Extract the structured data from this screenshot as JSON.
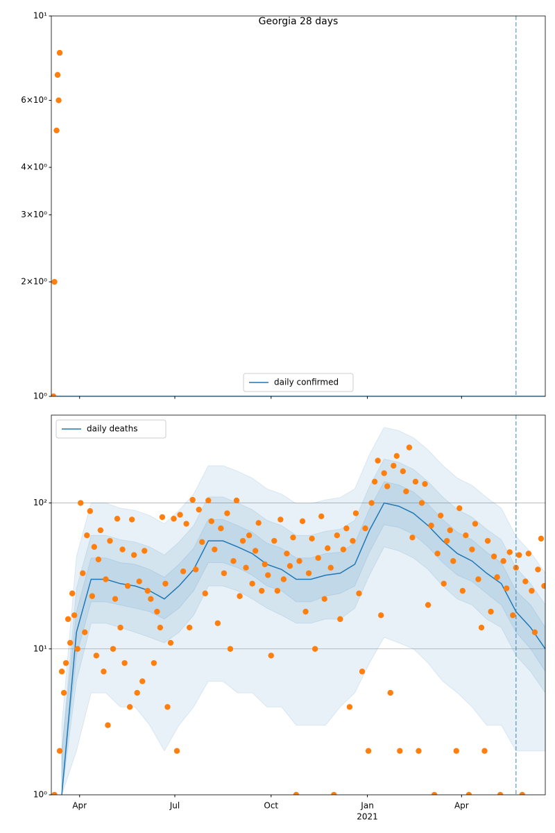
{
  "chart_data": [
    {
      "type": "line",
      "title": "Georgia 28 days",
      "log_y": true,
      "grid": false,
      "legend": "lower center",
      "xlim": [
        "2020-03-05",
        "2021-06-20"
      ],
      "ylim": [
        1,
        10
      ],
      "xticks": [
        "2020-04-01",
        "2020-07-01",
        "2020-10-01",
        "2021-01-01",
        "2021-04-01"
      ],
      "yticks": [
        {
          "value": 1,
          "label": "10⁰"
        },
        {
          "value": 2,
          "label": "2×10⁰"
        },
        {
          "value": 3,
          "label": "3×10⁰"
        },
        {
          "value": 4,
          "label": "4×10⁰"
        },
        {
          "value": 6,
          "label": "6×10⁰"
        },
        {
          "value": 10,
          "label": "10¹"
        }
      ],
      "vline": "2021-05-23",
      "series": [
        {
          "name": "daily confirmed",
          "color": "#1f77b4",
          "x": [
            "2020-03-05",
            "2021-06-20"
          ],
          "values": [
            1,
            1
          ]
        }
      ],
      "scatter": {
        "color": "#ff7f0e",
        "x": [
          "2020-03-07",
          "2020-03-08",
          "2020-03-10",
          "2020-03-12",
          "2020-03-11",
          "2020-03-13"
        ],
        "values": [
          1,
          2,
          5,
          6,
          7,
          8
        ]
      }
    },
    {
      "type": "line",
      "log_y": true,
      "grid": true,
      "legend": "upper left",
      "xlim": [
        "2020-03-05",
        "2021-06-20"
      ],
      "ylim": [
        1,
        400
      ],
      "xticks": [
        {
          "value": "2020-04-01",
          "label": "Apr"
        },
        {
          "value": "2020-07-01",
          "label": "Jul"
        },
        {
          "value": "2020-10-01",
          "label": "Oct"
        },
        {
          "value": "2021-01-01",
          "label": "Jan",
          "sublabel": "2021"
        },
        {
          "value": "2021-04-01",
          "label": "Apr"
        }
      ],
      "yticks": [
        {
          "value": 1,
          "label": "10⁰"
        },
        {
          "value": 10,
          "label": "10¹"
        },
        {
          "value": 100,
          "label": "10²"
        }
      ],
      "vline": "2021-05-23",
      "band_color": "#1f77b4",
      "band_x": [
        "2020-03-15",
        "2020-03-29",
        "2020-04-12",
        "2020-04-26",
        "2020-05-10",
        "2020-05-24",
        "2020-06-07",
        "2020-06-21",
        "2020-07-05",
        "2020-07-19",
        "2020-08-02",
        "2020-08-16",
        "2020-08-30",
        "2020-09-13",
        "2020-09-27",
        "2020-10-11",
        "2020-10-25",
        "2020-11-08",
        "2020-11-22",
        "2020-12-06",
        "2020-12-20",
        "2021-01-03",
        "2021-01-17",
        "2021-01-31",
        "2021-02-14",
        "2021-02-28",
        "2021-03-14",
        "2021-03-28",
        "2021-04-11",
        "2021-04-25",
        "2021-05-09",
        "2021-05-23",
        "2021-06-06",
        "2021-06-20"
      ],
      "bands": [
        {
          "upper": [
            3,
            43,
            100,
            100,
            92,
            89,
            82,
            72,
            89,
            115,
            180,
            180,
            165,
            148,
            125,
            115,
            99,
            99,
            105,
            109,
            125,
            215,
            330,
            313,
            280,
            231,
            181,
            148,
            132,
            109,
            92,
            59,
            46,
            33
          ],
          "lower": [
            1,
            2,
            5,
            5,
            4,
            4,
            3,
            2,
            3,
            4,
            6,
            6,
            5,
            5,
            4,
            4,
            3,
            3,
            3,
            4,
            5,
            8,
            12,
            11,
            10,
            8,
            6,
            5,
            4,
            3,
            3,
            2,
            2,
            2
          ]
        },
        {
          "upper": [
            2,
            26,
            60,
            60,
            56,
            54,
            50,
            44,
            54,
            70,
            110,
            110,
            100,
            90,
            76,
            70,
            60,
            60,
            64,
            66,
            76,
            130,
            200,
            190,
            170,
            140,
            110,
            90,
            80,
            66,
            56,
            36,
            28,
            20
          ],
          "lower": [
            1,
            6,
            15,
            15,
            14,
            13,
            12,
            11,
            13,
            17,
            27,
            27,
            25,
            22,
            19,
            17,
            15,
            15,
            16,
            16,
            19,
            32,
            50,
            47,
            42,
            35,
            27,
            22,
            20,
            16,
            14,
            9,
            7,
            5
          ]
        },
        {
          "upper": [
            2,
            18,
            42,
            42,
            39,
            38,
            35,
            31,
            38,
            49,
            77,
            77,
            70,
            63,
            53,
            49,
            42,
            42,
            45,
            46,
            53,
            91,
            140,
            133,
            119,
            98,
            77,
            63,
            56,
            46,
            39,
            25,
            20,
            14
          ],
          "lower": [
            1,
            9,
            21,
            21,
            20,
            19,
            18,
            16,
            19,
            25,
            39,
            39,
            36,
            32,
            27,
            25,
            21,
            21,
            23,
            24,
            27,
            46,
            71,
            68,
            61,
            50,
            39,
            32,
            29,
            24,
            20,
            13,
            10,
            7
          ]
        }
      ],
      "series": [
        {
          "name": "daily deaths",
          "color": "#1f77b4",
          "x": [
            "2020-03-15",
            "2020-03-29",
            "2020-04-12",
            "2020-04-26",
            "2020-05-10",
            "2020-05-24",
            "2020-06-07",
            "2020-06-21",
            "2020-07-05",
            "2020-07-19",
            "2020-08-02",
            "2020-08-16",
            "2020-08-30",
            "2020-09-13",
            "2020-09-27",
            "2020-10-11",
            "2020-10-25",
            "2020-11-08",
            "2020-11-22",
            "2020-12-06",
            "2020-12-20",
            "2021-01-03",
            "2021-01-17",
            "2021-01-31",
            "2021-02-14",
            "2021-02-28",
            "2021-03-14",
            "2021-03-28",
            "2021-04-11",
            "2021-04-25",
            "2021-05-09",
            "2021-05-23",
            "2021-06-06",
            "2021-06-20"
          ],
          "values": [
            1,
            13,
            30,
            30,
            28,
            27,
            25,
            22,
            27,
            35,
            55,
            55,
            50,
            45,
            38,
            35,
            30,
            30,
            32,
            33,
            38,
            65,
            100,
            95,
            85,
            70,
            55,
            45,
            40,
            33,
            28,
            18,
            14,
            10
          ]
        }
      ],
      "scatter": {
        "color": "#ff7f0e",
        "x": [
          "2020-03-08",
          "2020-03-13",
          "2020-03-15",
          "2020-03-17",
          "2020-03-19",
          "2020-03-21",
          "2020-03-23",
          "2020-03-25",
          "2020-03-27",
          "2020-03-30",
          "2020-04-02",
          "2020-04-04",
          "2020-04-06",
          "2020-04-08",
          "2020-04-11",
          "2020-04-13",
          "2020-04-15",
          "2020-04-17",
          "2020-04-19",
          "2020-04-21",
          "2020-04-24",
          "2020-04-26",
          "2020-04-28",
          "2020-04-30",
          "2020-05-03",
          "2020-05-05",
          "2020-05-07",
          "2020-05-10",
          "2020-05-12",
          "2020-05-14",
          "2020-05-17",
          "2020-05-19",
          "2020-05-21",
          "2020-05-23",
          "2020-05-26",
          "2020-05-28",
          "2020-05-31",
          "2020-06-02",
          "2020-06-05",
          "2020-06-08",
          "2020-06-11",
          "2020-06-14",
          "2020-06-17",
          "2020-06-19",
          "2020-06-22",
          "2020-06-24",
          "2020-06-27",
          "2020-06-30",
          "2020-07-03",
          "2020-07-06",
          "2020-07-09",
          "2020-07-12",
          "2020-07-15",
          "2020-07-18",
          "2020-07-21",
          "2020-07-24",
          "2020-07-27",
          "2020-07-30",
          "2020-08-02",
          "2020-08-05",
          "2020-08-08",
          "2020-08-11",
          "2020-08-14",
          "2020-08-17",
          "2020-08-20",
          "2020-08-23",
          "2020-08-26",
          "2020-08-29",
          "2020-09-01",
          "2020-09-04",
          "2020-09-07",
          "2020-09-10",
          "2020-09-13",
          "2020-09-16",
          "2020-09-19",
          "2020-09-22",
          "2020-09-25",
          "2020-09-28",
          "2020-10-01",
          "2020-10-04",
          "2020-10-07",
          "2020-10-10",
          "2020-10-13",
          "2020-10-16",
          "2020-10-19",
          "2020-10-22",
          "2020-10-25",
          "2020-10-28",
          "2020-10-31",
          "2020-11-03",
          "2020-11-06",
          "2020-11-09",
          "2020-11-12",
          "2020-11-15",
          "2020-11-18",
          "2020-11-21",
          "2020-11-24",
          "2020-11-27",
          "2020-11-30",
          "2020-12-03",
          "2020-12-06",
          "2020-12-09",
          "2020-12-12",
          "2020-12-15",
          "2020-12-18",
          "2020-12-21",
          "2020-12-24",
          "2020-12-27",
          "2020-12-30",
          "2021-01-02",
          "2021-01-05",
          "2021-01-08",
          "2021-01-11",
          "2021-01-14",
          "2021-01-17",
          "2021-01-20",
          "2021-01-23",
          "2021-01-26",
          "2021-01-29",
          "2021-02-01",
          "2021-02-04",
          "2021-02-07",
          "2021-02-10",
          "2021-02-13",
          "2021-02-16",
          "2021-02-19",
          "2021-02-22",
          "2021-02-25",
          "2021-02-28",
          "2021-03-03",
          "2021-03-06",
          "2021-03-09",
          "2021-03-12",
          "2021-03-15",
          "2021-03-18",
          "2021-03-21",
          "2021-03-24",
          "2021-03-27",
          "2021-03-30",
          "2021-04-02",
          "2021-04-05",
          "2021-04-08",
          "2021-04-11",
          "2021-04-14",
          "2021-04-17",
          "2021-04-20",
          "2021-04-23",
          "2021-04-26",
          "2021-04-29",
          "2021-05-02",
          "2021-05-05",
          "2021-05-08",
          "2021-05-11",
          "2021-05-14",
          "2021-05-17",
          "2021-05-20",
          "2021-05-23",
          "2021-05-26",
          "2021-05-29",
          "2021-06-01",
          "2021-06-04",
          "2021-06-07",
          "2021-06-10",
          "2021-06-13",
          "2021-06-16",
          "2021-06-19"
        ],
        "values": [
          1,
          2,
          7,
          5,
          8,
          16,
          11,
          24,
          17,
          10,
          100,
          33,
          13,
          60,
          88,
          23,
          50,
          9,
          41,
          65,
          7,
          30,
          3,
          55,
          10,
          22,
          78,
          14,
          48,
          8,
          27,
          4,
          77,
          44,
          5,
          29,
          6,
          47,
          25,
          22,
          8,
          18,
          14,
          80,
          28,
          4,
          11,
          78,
          2,
          83,
          34,
          72,
          14,
          105,
          35,
          90,
          54,
          24,
          104,
          75,
          48,
          15,
          67,
          33,
          85,
          10,
          40,
          104,
          23,
          55,
          36,
          60,
          28,
          47,
          73,
          25,
          38,
          32,
          9,
          55,
          25,
          77,
          30,
          45,
          37,
          58,
          1,
          40,
          75,
          18,
          33,
          57,
          10,
          42,
          81,
          22,
          49,
          36,
          1,
          60,
          16,
          48,
          67,
          4,
          55,
          85,
          24,
          7,
          67,
          2,
          100,
          140,
          195,
          17,
          160,
          130,
          5,
          180,
          210,
          2,
          165,
          120,
          240,
          58,
          140,
          2,
          100,
          135,
          20,
          70,
          1,
          45,
          82,
          28,
          55,
          65,
          40,
          2,
          92,
          25,
          60,
          1,
          48,
          72,
          30,
          14,
          2,
          55,
          18,
          43,
          31,
          1,
          40,
          26,
          46,
          17,
          36,
          44,
          1,
          29,
          45,
          25,
          13,
          35,
          57,
          27
        ]
      }
    }
  ]
}
